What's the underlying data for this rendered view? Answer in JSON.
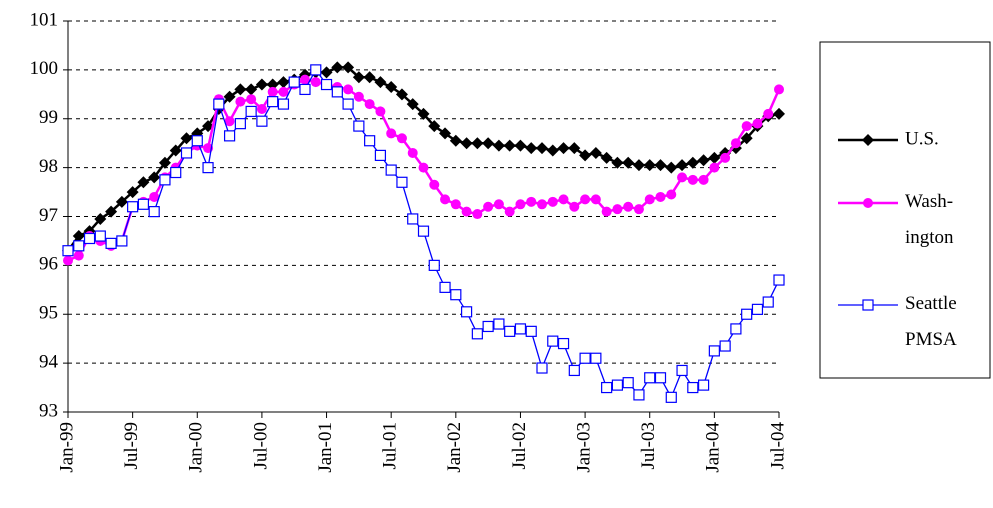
{
  "chart_data": {
    "type": "line",
    "categories": [
      "Jan-99",
      null,
      null,
      null,
      null,
      null,
      "Jul-99",
      null,
      null,
      null,
      null,
      null,
      "Jan-00",
      null,
      null,
      null,
      null,
      null,
      "Jul-00",
      null,
      null,
      null,
      null,
      null,
      "Jan-01",
      null,
      null,
      null,
      null,
      null,
      "Jul-01",
      null,
      null,
      null,
      null,
      null,
      "Jan-02",
      null,
      null,
      null,
      null,
      null,
      "Jul-02",
      null,
      null,
      null,
      null,
      null,
      "Jan-03",
      null,
      null,
      null,
      null,
      null,
      "Jul-03",
      null,
      null,
      null,
      null,
      null,
      "Jan-04",
      null,
      null,
      null,
      null,
      null,
      "Jul-04"
    ],
    "series": [
      {
        "name": "U.S.",
        "color": "#000000",
        "marker": "diamond",
        "values": [
          96.3,
          96.6,
          96.7,
          96.95,
          97.1,
          97.3,
          97.5,
          97.7,
          97.8,
          98.1,
          98.35,
          98.6,
          98.7,
          98.85,
          99.2,
          99.45,
          99.6,
          99.6,
          99.7,
          99.7,
          99.75,
          99.8,
          99.9,
          99.95,
          99.95,
          100.05,
          100.05,
          99.85,
          99.85,
          99.75,
          99.65,
          99.5,
          99.3,
          99.1,
          98.85,
          98.7,
          98.55,
          98.5,
          98.5,
          98.5,
          98.45,
          98.45,
          98.45,
          98.4,
          98.4,
          98.35,
          98.4,
          98.4,
          98.25,
          98.3,
          98.2,
          98.1,
          98.1,
          98.05,
          98.05,
          98.05,
          98.0,
          98.05,
          98.1,
          98.15,
          98.2,
          98.3,
          98.4,
          98.6,
          98.85,
          99.05,
          99.1
        ]
      },
      {
        "name": "Wash-\nington",
        "color": "#ff00ff",
        "marker": "circle",
        "values": [
          96.1,
          96.2,
          96.6,
          96.5,
          96.4,
          96.5,
          97.2,
          97.3,
          97.4,
          97.8,
          98.0,
          98.3,
          98.45,
          98.4,
          99.4,
          98.95,
          99.35,
          99.4,
          99.2,
          99.55,
          99.55,
          99.7,
          99.8,
          99.75,
          99.7,
          99.65,
          99.6,
          99.45,
          99.3,
          99.15,
          98.7,
          98.6,
          98.3,
          98.0,
          97.65,
          97.35,
          97.25,
          97.1,
          97.05,
          97.2,
          97.25,
          97.1,
          97.25,
          97.3,
          97.25,
          97.3,
          97.35,
          97.2,
          97.35,
          97.35,
          97.1,
          97.15,
          97.2,
          97.15,
          97.35,
          97.4,
          97.45,
          97.8,
          97.75,
          97.75,
          98.0,
          98.2,
          98.5,
          98.85,
          98.9,
          99.1,
          99.6
        ]
      },
      {
        "name": "Seattle\nPMSA",
        "color": "#0000ff",
        "marker": "square",
        "values": [
          96.3,
          96.4,
          96.55,
          96.6,
          96.45,
          96.5,
          97.2,
          97.25,
          97.1,
          97.75,
          97.9,
          98.3,
          98.55,
          98.0,
          99.3,
          98.65,
          98.9,
          99.15,
          98.95,
          99.35,
          99.3,
          99.75,
          99.6,
          100.0,
          99.7,
          99.55,
          99.3,
          98.85,
          98.55,
          98.25,
          97.95,
          97.7,
          96.95,
          96.7,
          96.0,
          95.55,
          95.4,
          95.05,
          94.6,
          94.75,
          94.8,
          94.65,
          94.7,
          94.65,
          93.9,
          94.45,
          94.4,
          93.85,
          94.1,
          94.1,
          93.5,
          93.55,
          93.6,
          93.35,
          93.7,
          93.7,
          93.3,
          93.85,
          93.5,
          93.55,
          94.25,
          94.35,
          94.7,
          95.0,
          95.1,
          95.25,
          95.7
        ]
      }
    ],
    "ylim": [
      93,
      101
    ],
    "yticks": [
      93,
      94,
      95,
      96,
      97,
      98,
      99,
      100,
      101
    ],
    "grid": true,
    "legend": "right"
  }
}
